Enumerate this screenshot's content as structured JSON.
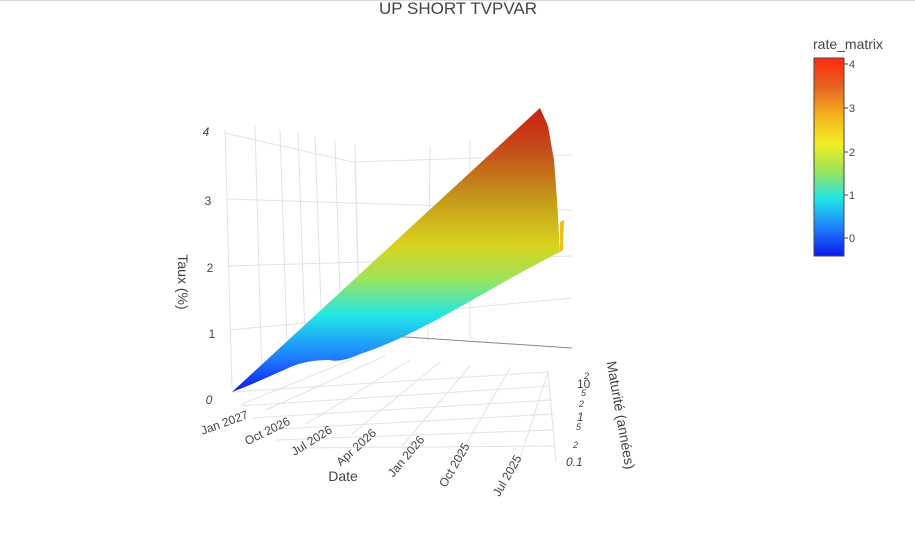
{
  "chart_data": {
    "type": "surface",
    "title": "UP SHORT TVPVAR",
    "x_axis": {
      "label": "Maturité (années)",
      "scale": "log",
      "tick_labels": [
        {
          "text": "0.1",
          "size": "main"
        },
        {
          "text": "2",
          "size": "minor"
        },
        {
          "text": "5",
          "size": "minor"
        },
        {
          "text": "1",
          "size": "main"
        },
        {
          "text": "2",
          "size": "minor"
        },
        {
          "text": "5",
          "size": "minor"
        },
        {
          "text": "10",
          "size": "main"
        },
        {
          "text": "2",
          "size": "minor"
        }
      ]
    },
    "y_axis": {
      "label": "Date",
      "tick_labels": [
        "Jul 2025",
        "Oct 2025",
        "Jan 2026",
        "Apr 2026",
        "Jul 2026",
        "Oct 2026",
        "Jan 2027"
      ]
    },
    "z_axis": {
      "label": "Taux (%)",
      "range": [
        0,
        4.2
      ],
      "tick_labels": [
        "0",
        "1",
        "2",
        "3",
        "4"
      ]
    },
    "colorbar": {
      "title": "rate_matrix",
      "range": [
        -0.4,
        4.2
      ],
      "tick_labels": [
        "0",
        "1",
        "2",
        "3",
        "4"
      ],
      "colorscale": [
        "#0d17e8",
        "#1f7dff",
        "#21e6e6",
        "#9ee35a",
        "#f2ee22",
        "#f4b420",
        "#e6611f",
        "#ff2b0f"
      ]
    },
    "series": [
      {
        "date": "Jul 2025",
        "maturities": [
          0.1,
          0.5,
          1,
          2,
          5,
          10,
          20,
          30
        ],
        "values": [
          1.7,
          1.82,
          1.95,
          2.15,
          2.6,
          3.25,
          3.9,
          4.15
        ]
      },
      {
        "date": "Jan 2027",
        "maturities": [
          0.1,
          0.5,
          1,
          2,
          5,
          10,
          20,
          30
        ],
        "values": [
          0.05,
          0.1,
          0.25,
          0.55,
          1.2,
          2.1,
          3.3,
          4.0
        ]
      }
    ]
  }
}
